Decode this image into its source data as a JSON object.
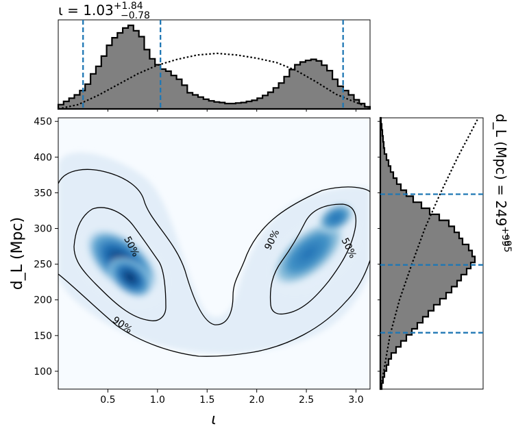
{
  "chart_data": {
    "type": "heatmap",
    "joint": {
      "xlabel": "ι",
      "ylabel": "d_L (Mpc)",
      "xlim": [
        0.0,
        3.14159
      ],
      "ylim": [
        75,
        455
      ],
      "xticks": [
        "0.5",
        "1.0",
        "1.5",
        "2.0",
        "2.5",
        "3.0"
      ],
      "xtick_values": [
        0.5,
        1.0,
        1.5,
        2.0,
        2.5,
        3.0
      ],
      "yticks": [
        "100",
        "150",
        "200",
        "250",
        "300",
        "350",
        "400",
        "450"
      ],
      "ytick_values": [
        100,
        150,
        200,
        250,
        300,
        350,
        400,
        450
      ],
      "density_modes": [
        {
          "x": 0.65,
          "y": 235,
          "weight": 1.0
        },
        {
          "x": 2.55,
          "y": 260,
          "weight": 0.78
        }
      ],
      "contours": [
        {
          "label": "50%",
          "label_x": 0.78,
          "label_y": 262
        },
        {
          "label": "90%",
          "label_x": 0.63,
          "label_y": 148
        },
        {
          "label": "90%",
          "label_x": 1.86,
          "label_y": 285
        },
        {
          "label": "50%",
          "label_x": 2.9,
          "label_y": 262
        }
      ],
      "colormap": [
        "#f7fbff",
        "#c6dbef",
        "#6baed6",
        "#2171b5",
        "#08306b"
      ],
      "contour_color": "#000000"
    },
    "top_marginal": {
      "title": "ι = 1.03",
      "title_sup": "+1.84",
      "title_sub": "−0.78",
      "median": 1.03,
      "interval": [
        0.25,
        2.87
      ],
      "line_color": "#1f77b4",
      "fill_color": "#808080",
      "posterior_bins": [
        0.8,
        1.4,
        2.0,
        2.6,
        3.4,
        4.6,
        6.5,
        7.9,
        9.8,
        11.8,
        13.2,
        14.1,
        15.0,
        15.5,
        14.5,
        13.4,
        11.0,
        9.3,
        8.2,
        7.4,
        7.0,
        6.2,
        5.5,
        4.4,
        3.0,
        2.6,
        2.2,
        1.8,
        1.5,
        1.3,
        1.2,
        1.0,
        1.0,
        1.1,
        1.2,
        1.4,
        1.6,
        2.0,
        2.5,
        3.1,
        3.9,
        4.8,
        6.0,
        7.3,
        8.2,
        8.7,
        9.0,
        9.2,
        8.9,
        8.1,
        7.1,
        5.5,
        4.2,
        3.4,
        2.6,
        1.7,
        1.0,
        0.4
      ],
      "prior_points": [
        [
          0.0,
          0.0
        ],
        [
          0.2,
          0.8
        ],
        [
          0.4,
          2.5
        ],
        [
          0.6,
          4.5
        ],
        [
          0.8,
          6.5
        ],
        [
          1.0,
          8.1
        ],
        [
          1.2,
          9.2
        ],
        [
          1.4,
          10.0
        ],
        [
          1.6,
          10.3
        ],
        [
          1.8,
          10.0
        ],
        [
          2.0,
          9.4
        ],
        [
          2.2,
          8.6
        ],
        [
          2.4,
          7.1
        ],
        [
          2.6,
          5.0
        ],
        [
          2.8,
          2.7
        ],
        [
          3.0,
          1.2
        ],
        [
          3.14,
          0.2
        ]
      ]
    },
    "right_marginal": {
      "title": "d_L (Mpc) = 249",
      "title_sup": "+99",
      "title_sub": "−95",
      "median": 249,
      "interval": [
        154,
        348
      ],
      "line_color": "#1f77b4",
      "fill_color": "#808080",
      "posterior_bins": [
        0.2,
        0.4,
        0.6,
        0.9,
        1.2,
        1.6,
        2.3,
        3.0,
        3.8,
        4.6,
        5.4,
        6.2,
        7.0,
        7.8,
        8.7,
        9.6,
        10.4,
        11.2,
        11.8,
        12.6,
        13.2,
        13.8,
        13.4,
        12.9,
        12.0,
        11.5,
        10.8,
        10.0,
        8.6,
        7.2,
        6.0,
        4.8,
        3.8,
        3.0,
        2.4,
        1.9,
        1.5,
        1.2,
        0.9,
        0.6,
        0.5,
        0.4,
        0.3,
        0.2,
        0.1
      ],
      "prior_points": [
        [
          75,
          0.0
        ],
        [
          100,
          0.5
        ],
        [
          150,
          1.4
        ],
        [
          200,
          2.8
        ],
        [
          250,
          4.6
        ],
        [
          300,
          6.5
        ],
        [
          350,
          8.8
        ],
        [
          400,
          11.3
        ],
        [
          440,
          13.5
        ],
        [
          455,
          14.3
        ]
      ]
    }
  }
}
